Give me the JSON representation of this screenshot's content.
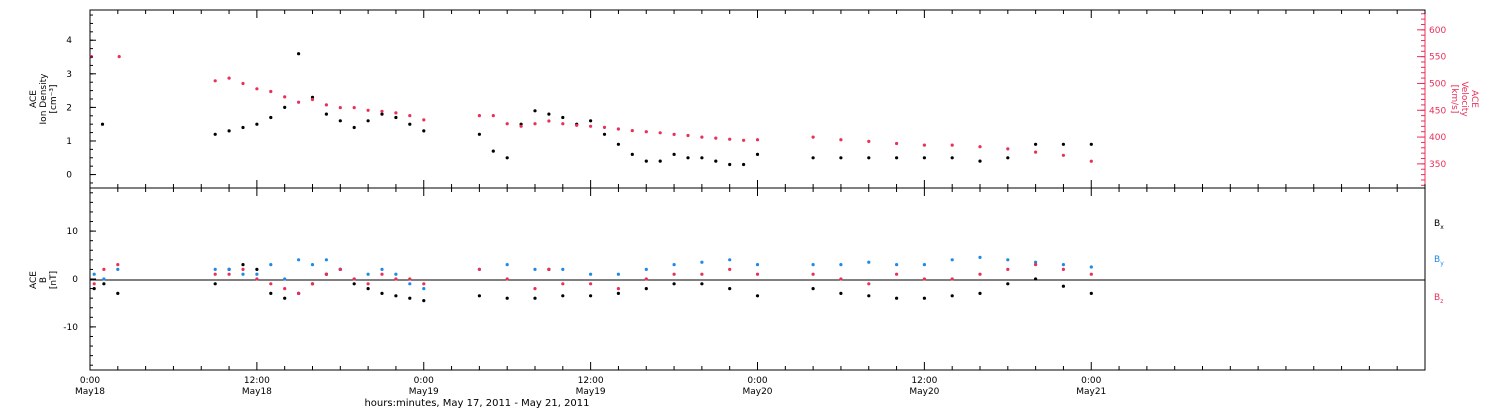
{
  "chart_data": [
    {
      "type": "scatter",
      "panel": "top",
      "ylabel_lines": [
        "ACE",
        "Ion Density",
        "[cm⁻³]"
      ],
      "y2label_lines": [
        "ACE",
        "Velocity",
        "[km/s]"
      ],
      "xlim_hours": [
        0,
        96
      ],
      "ylim": [
        -0.4,
        4.9
      ],
      "yticks": [
        0,
        1,
        2,
        3,
        4
      ],
      "y2lim": [
        305,
        637
      ],
      "y2ticks": [
        350,
        400,
        450,
        500,
        550,
        600
      ],
      "colors": {
        "density": "#000000",
        "velocity": "#e8305a"
      },
      "series": [
        {
          "key": "density",
          "axis": "left",
          "segments": [
            {
              "x": [
                0.9,
                9.0,
                10.0,
                11.0,
                12.0,
                13.0,
                14.0,
                15.0,
                16.0,
                17.0,
                18.0,
                19.0,
                20.0,
                21.0,
                22.0,
                23.0,
                24.0
              ],
              "y": [
                1.5,
                1.2,
                1.3,
                1.4,
                1.5,
                1.7,
                2.0,
                3.6,
                2.3,
                1.8,
                1.6,
                1.4,
                1.6,
                1.8,
                1.7,
                1.5,
                1.3
              ]
            },
            {
              "x": [
                28.0,
                29.0,
                30.0,
                31.0,
                32.0,
                33.0,
                34.0,
                35.0,
                36.0,
                37.0,
                38.0,
                39.0,
                40.0,
                41.0,
                42.0,
                43.0,
                44.0,
                45.0,
                46.0,
                47.0,
                48.0
              ],
              "y": [
                1.2,
                0.7,
                0.5,
                1.5,
                1.9,
                1.8,
                1.7,
                1.5,
                1.6,
                1.2,
                0.9,
                0.6,
                0.4,
                0.4,
                0.6,
                0.5,
                0.5,
                0.4,
                0.3,
                0.3,
                0.6
              ]
            },
            {
              "x": [
                52.0,
                54.0,
                56.0,
                58.0,
                60.0,
                62.0,
                64.0,
                66.0,
                68.0,
                70.0,
                72.0
              ],
              "y": [
                0.5,
                0.5,
                0.5,
                0.5,
                0.5,
                0.5,
                0.4,
                0.5,
                0.9,
                0.9,
                0.9
              ]
            }
          ]
        },
        {
          "key": "velocity",
          "axis": "right",
          "segments": [
            {
              "x": [
                0.1,
                2.1
              ],
              "y": [
                550,
                550
              ]
            },
            {
              "x": [
                9.0,
                10.0,
                11.0,
                12.0,
                13.0,
                14.0,
                15.0,
                16.0,
                17.0,
                18.0,
                19.0,
                20.0,
                21.0,
                22.0,
                23.0,
                24.0
              ],
              "y": [
                505,
                510,
                500,
                490,
                485,
                475,
                465,
                470,
                460,
                455,
                455,
                450,
                448,
                445,
                440,
                432
              ]
            },
            {
              "x": [
                28.0,
                29.0,
                30.0,
                31.0,
                32.0,
                33.0,
                34.0,
                35.0,
                36.0,
                37.0,
                38.0,
                39.0,
                40.0,
                41.0,
                42.0,
                43.0,
                44.0,
                45.0,
                46.0,
                47.0,
                48.0
              ],
              "y": [
                440,
                440,
                425,
                420,
                425,
                430,
                425,
                422,
                420,
                418,
                415,
                412,
                410,
                408,
                405,
                403,
                400,
                398,
                396,
                394,
                395
              ]
            },
            {
              "x": [
                52.0,
                54.0,
                56.0,
                58.0,
                60.0,
                62.0,
                64.0,
                66.0,
                68.0,
                70.0,
                72.0
              ],
              "y": [
                400,
                395,
                392,
                388,
                385,
                385,
                382,
                378,
                372,
                366,
                355
              ]
            }
          ]
        }
      ]
    },
    {
      "type": "scatter",
      "panel": "bottom",
      "ylabel_lines": [
        "ACE",
        "B",
        "[nT]"
      ],
      "xlim_hours": [
        0,
        96
      ],
      "ylim": [
        -19,
        19
      ],
      "yticks": [
        -10,
        0,
        10
      ],
      "legend_position": "right",
      "legend": [
        {
          "key": "bx",
          "base": "B",
          "sub": "x",
          "color": "#000000"
        },
        {
          "key": "by",
          "base": "B",
          "sub": "y",
          "color": "#1e8ae8"
        },
        {
          "key": "bz",
          "base": "B",
          "sub": "z",
          "color": "#e8305a"
        }
      ],
      "series": [
        {
          "key": "bx",
          "segments": [
            {
              "x": [
                0.3,
                1.0,
                2.0
              ],
              "y": [
                -2,
                -1,
                -3
              ]
            },
            {
              "x": [
                9.0,
                10.0,
                11.0,
                12.0,
                13.0,
                14.0,
                15.0,
                16.0,
                17.0,
                18.0,
                19.0,
                20.0,
                21.0,
                22.0,
                23.0,
                24.0
              ],
              "y": [
                -1,
                2,
                3,
                2,
                -3,
                -4,
                -3,
                -1,
                1,
                2,
                -1,
                -2,
                -3,
                -3.5,
                -4,
                -4.5
              ]
            },
            {
              "x": [
                28.0,
                30.0,
                32.0,
                33.0,
                34.0,
                36.0,
                38.0,
                40.0,
                42.0,
                44.0,
                46.0,
                48.0
              ],
              "y": [
                -3.5,
                -4,
                -4,
                2,
                -3.5,
                -3.5,
                -3,
                -2,
                -1,
                -1,
                -2,
                -3.5
              ]
            },
            {
              "x": [
                52.0,
                54.0,
                56.0,
                58.0,
                60.0,
                62.0,
                64.0,
                66.0,
                68.0,
                70.0,
                72.0
              ],
              "y": [
                -2,
                -3,
                -3.5,
                -4,
                -4,
                -3.5,
                -3,
                -1,
                0,
                -1.5,
                -3
              ]
            }
          ]
        },
        {
          "key": "by",
          "segments": [
            {
              "x": [
                0.3,
                1.0,
                2.0
              ],
              "y": [
                1,
                0,
                2
              ]
            },
            {
              "x": [
                9.0,
                10.0,
                11.0,
                12.0,
                13.0,
                14.0,
                15.0,
                16.0,
                17.0,
                18.0,
                19.0,
                20.0,
                21.0,
                22.0,
                23.0,
                24.0
              ],
              "y": [
                2,
                2,
                1,
                1,
                3,
                0,
                4,
                3,
                4,
                2,
                0,
                1,
                2,
                1,
                -1,
                -2
              ]
            },
            {
              "x": [
                28.0,
                30.0,
                32.0,
                34.0,
                36.0,
                38.0,
                40.0,
                42.0,
                44.0,
                46.0,
                48.0
              ],
              "y": [
                2,
                3,
                2,
                2,
                1,
                1,
                2,
                3,
                3.5,
                4,
                3
              ]
            },
            {
              "x": [
                52.0,
                54.0,
                56.0,
                58.0,
                60.0,
                62.0,
                64.0,
                66.0,
                68.0,
                70.0,
                72.0
              ],
              "y": [
                3,
                3,
                3.5,
                3,
                3,
                4,
                4.5,
                4,
                3.5,
                3,
                2.5
              ]
            }
          ]
        },
        {
          "key": "bz",
          "segments": [
            {
              "x": [
                0.3,
                1.0,
                2.0
              ],
              "y": [
                -1,
                2,
                3
              ]
            },
            {
              "x": [
                9.0,
                10.0,
                11.0,
                12.0,
                13.0,
                14.0,
                15.0,
                16.0,
                17.0,
                18.0,
                19.0,
                20.0,
                21.0,
                22.0,
                23.0,
                24.0
              ],
              "y": [
                1,
                1,
                2,
                0,
                -1,
                -2,
                -3,
                -1,
                1,
                2,
                0,
                -1,
                1,
                0,
                0,
                -1
              ]
            },
            {
              "x": [
                28.0,
                30.0,
                32.0,
                33.0,
                34.0,
                36.0,
                38.0,
                40.0,
                42.0,
                44.0,
                46.0,
                48.0
              ],
              "y": [
                2,
                0,
                -2,
                2,
                -1,
                -1,
                -2,
                0,
                1,
                1,
                2,
                1
              ]
            },
            {
              "x": [
                52.0,
                54.0,
                56.0,
                58.0,
                60.0,
                62.0,
                64.0,
                66.0,
                68.0,
                70.0,
                72.0
              ],
              "y": [
                1,
                0,
                -1,
                1,
                0,
                0,
                1,
                2,
                3,
                2,
                1
              ]
            }
          ]
        }
      ]
    }
  ],
  "x_axis": {
    "major_ticks_hours": [
      0,
      12,
      24,
      36,
      48,
      60,
      72
    ],
    "minor_step_hours": 2,
    "labels": [
      {
        "hour": 0,
        "time": "0:00",
        "date": "May18"
      },
      {
        "hour": 12,
        "time": "12:00",
        "date": "May18"
      },
      {
        "hour": 24,
        "time": "0:00",
        "date": "May19"
      },
      {
        "hour": 36,
        "time": "12:00",
        "date": "May19"
      },
      {
        "hour": 48,
        "time": "0:00",
        "date": "May20"
      },
      {
        "hour": 60,
        "time": "12:00",
        "date": "May20"
      },
      {
        "hour": 72,
        "time": "0:00",
        "date": "May21"
      }
    ],
    "label": "hours:minutes, May 17, 2011 - May 21, 2011"
  }
}
